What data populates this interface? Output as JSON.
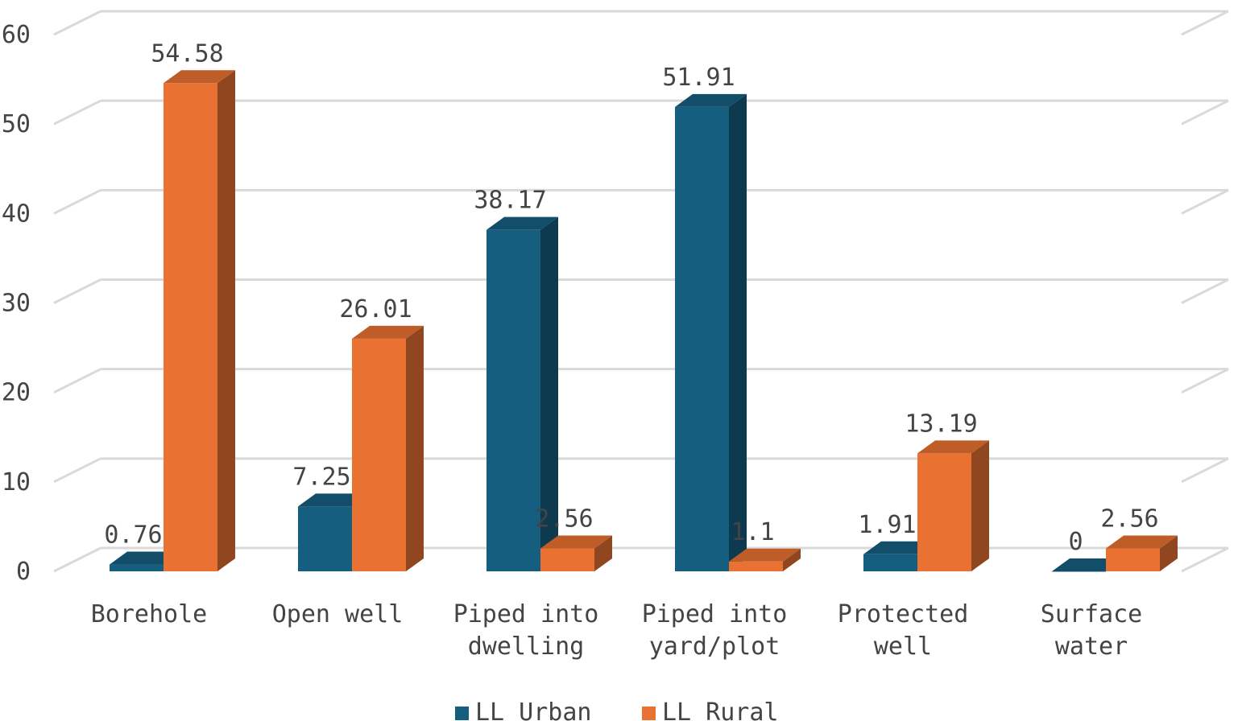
{
  "chart_data": {
    "type": "bar",
    "categories": [
      [
        "Borehole"
      ],
      [
        "Open well"
      ],
      [
        "Piped into",
        "dwelling"
      ],
      [
        "Piped into",
        "yard/plot"
      ],
      [
        "Protected",
        "well"
      ],
      [
        "Surface",
        "water"
      ]
    ],
    "series": [
      {
        "name": "LL Urban",
        "color": "#165E80",
        "values": [
          0.76,
          7.25,
          38.17,
          51.91,
          1.91,
          0
        ]
      },
      {
        "name": "LL Rural",
        "color": "#E97132",
        "values": [
          54.58,
          26.01,
          2.56,
          1.1,
          13.19,
          2.56
        ]
      }
    ],
    "data_labels": [
      [
        "0.76",
        "7.25",
        "38.17",
        "51.91",
        "1.91",
        "0"
      ],
      [
        "54.58",
        "26.01",
        "2.56",
        "1.1",
        "13.19",
        "2.56"
      ]
    ],
    "yticks": [
      "0",
      "10",
      "20",
      "30",
      "40",
      "50",
      "60"
    ],
    "ylim": [
      0,
      60
    ],
    "grid": true,
    "legend_position": "bottom",
    "title": "",
    "xlabel": "",
    "ylabel": ""
  }
}
